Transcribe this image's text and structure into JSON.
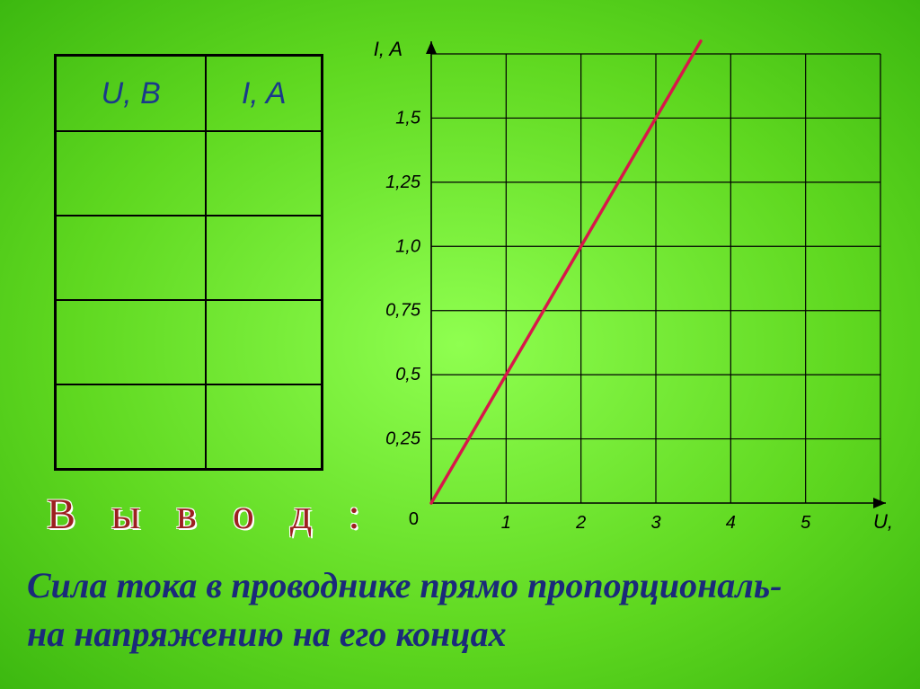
{
  "table": {
    "columns": [
      "U, B",
      "I, A"
    ],
    "rows": [
      [
        "",
        ""
      ],
      [
        "",
        ""
      ],
      [
        "",
        ""
      ],
      [
        "",
        ""
      ]
    ],
    "header_color": "#1a3a8a",
    "header_fontsize": 34,
    "border_color": "#000000"
  },
  "conclusion_heading": "В ы в о д :",
  "conclusion_text_line1": "Сила тока в проводнике прямо пропорциональ-",
  "conclusion_text_line2": "на напряжению на его концах",
  "chart": {
    "type": "line",
    "x_label": "U, B",
    "y_label": "I, A",
    "x_ticks": [
      1,
      2,
      3,
      4,
      5
    ],
    "y_ticks": [
      0.25,
      0.5,
      0.75,
      "1,0",
      "1,25",
      "1,5"
    ],
    "y_tick_labels": [
      "0,25",
      "0,5",
      "0,75",
      "1,0",
      "1,25",
      "1,5"
    ],
    "origin_label": "0",
    "xlim": [
      0,
      6
    ],
    "ylim": [
      0,
      1.75
    ],
    "grid_color": "#000000",
    "grid_width": 1.2,
    "axis_color": "#000000",
    "axis_width": 1.6,
    "line_color": "#d8174a",
    "line_width": 3.5,
    "line_points": [
      [
        0,
        0
      ],
      [
        3.6,
        1.8
      ]
    ],
    "background": "transparent",
    "tick_fontsize": 20,
    "label_fontsize": 22
  },
  "colors": {
    "bg_inner": "#8fff50",
    "bg_outer": "#3cb810",
    "heading": "#9c2020",
    "text": "#1a2a7a"
  }
}
